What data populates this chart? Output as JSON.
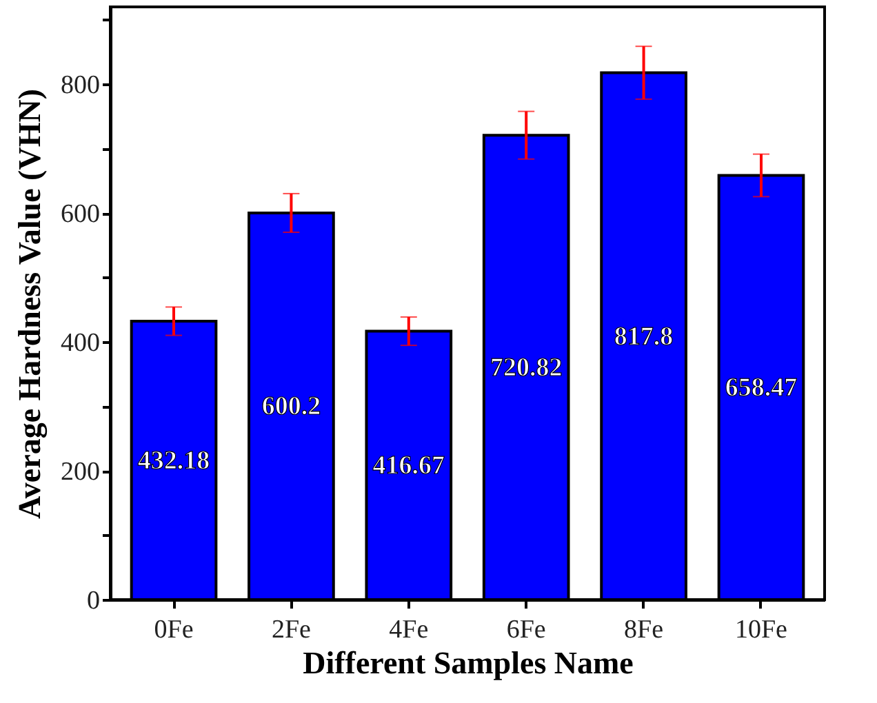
{
  "chart_data": {
    "type": "bar",
    "xlabel": "Different Samples Name",
    "ylabel": "Average Hardness Value (VHN)",
    "categories": [
      "0Fe",
      "2Fe",
      "4Fe",
      "6Fe",
      "8Fe",
      "10Fe"
    ],
    "values": [
      432.18,
      600.2,
      416.67,
      720.82,
      817.8,
      658.47
    ],
    "errors": [
      22,
      30,
      22,
      37,
      41,
      33
    ],
    "color": "#0000ff",
    "ylim": [
      0,
      920
    ],
    "yticks": [
      0,
      {
        "value": 100,
        "label": null
      },
      200,
      {
        "value": 300,
        "label": null
      },
      400,
      {
        "value": 500,
        "label": null
      },
      600,
      {
        "value": 700,
        "label": null
      },
      800,
      {
        "value": 900,
        "label": null
      }
    ],
    "data_labels": true,
    "grid": false
  }
}
